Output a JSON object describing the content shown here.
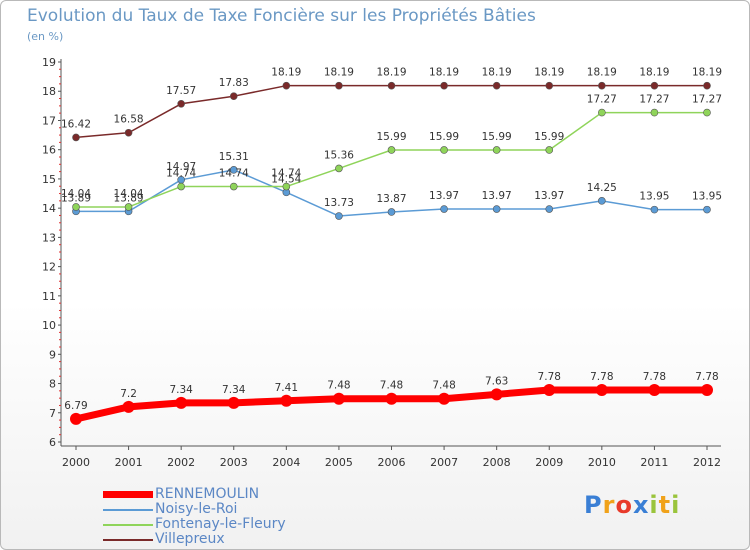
{
  "chart_data": {
    "type": "line",
    "title": "Evolution du Taux de Taxe Foncière sur les Propriétés Bâties",
    "subtitle": "(en %)",
    "x": [
      "2000",
      "2001",
      "2002",
      "2003",
      "2004",
      "2005",
      "2006",
      "2007",
      "2008",
      "2009",
      "2010",
      "2011",
      "2012"
    ],
    "ylim": [
      6,
      19
    ],
    "yticks": [
      6,
      7,
      8,
      9,
      10,
      11,
      12,
      13,
      14,
      15,
      16,
      17,
      18,
      19
    ],
    "grid": false,
    "legend_position": "bottom-left",
    "series": [
      {
        "name": "RENNEMOULIN",
        "color": "#ff0000",
        "values": [
          6.79,
          7.2,
          7.34,
          7.34,
          7.41,
          7.48,
          7.48,
          7.48,
          7.63,
          7.78,
          7.78,
          7.78,
          7.78
        ],
        "labels": [
          "6.79",
          "7.2",
          "7.34",
          "7.34",
          "7.41",
          "7.48",
          "7.48",
          "7.48",
          "7.63",
          "7.78",
          "7.78",
          "7.78",
          "7.78"
        ]
      },
      {
        "name": "Noisy-le-Roi",
        "color": "#5b9bd5",
        "values": [
          13.89,
          13.89,
          14.97,
          15.31,
          14.54,
          13.73,
          13.87,
          13.97,
          13.97,
          13.97,
          14.25,
          13.95,
          13.95
        ],
        "labels": [
          "13.89",
          "13.89",
          "14.97",
          "15.31",
          "14.54",
          "13.73",
          "13.87",
          "13.97",
          "13.97",
          "13.97",
          "14.25",
          "13.95",
          "13.95"
        ]
      },
      {
        "name": "Fontenay-le-Fleury",
        "color": "#8fd45a",
        "values": [
          14.04,
          14.04,
          14.74,
          14.74,
          14.74,
          15.36,
          15.99,
          15.99,
          15.99,
          15.99,
          17.27,
          17.27,
          17.27
        ],
        "labels": [
          "14.04",
          "14.04",
          "14.74",
          "14.74",
          "14.74",
          "15.36",
          "15.99",
          "15.99",
          "15.99",
          "15.99",
          "17.27",
          "17.27",
          "17.27"
        ]
      },
      {
        "name": "Villepreux",
        "color": "#7a2a2a",
        "values": [
          16.42,
          16.58,
          17.57,
          17.83,
          18.19,
          18.19,
          18.19,
          18.19,
          18.19,
          18.19,
          18.19,
          18.19,
          18.19
        ],
        "labels": [
          "16.42",
          "16.58",
          "17.57",
          "17.83",
          "18.19",
          "18.19",
          "18.19",
          "18.19",
          "18.19",
          "18.19",
          "18.19",
          "18.19",
          "18.19"
        ]
      }
    ]
  },
  "logo": {
    "letters": [
      "P",
      "r",
      "o",
      "x",
      "i",
      "t",
      "i"
    ],
    "colors": [
      "#3a7fd5",
      "#f0a21a",
      "#e83a2a",
      "#3a7fd5",
      "#9ac43c",
      "#f0a21a",
      "#9ac43c"
    ]
  }
}
